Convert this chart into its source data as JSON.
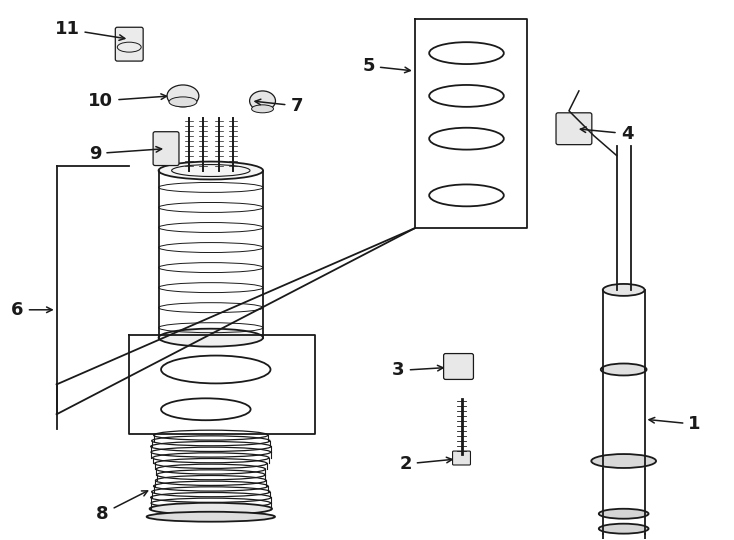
{
  "bg_color": "#ffffff",
  "line_color": "#1a1a1a",
  "fig_width": 7.34,
  "fig_height": 5.4,
  "label_fontsize": 13
}
